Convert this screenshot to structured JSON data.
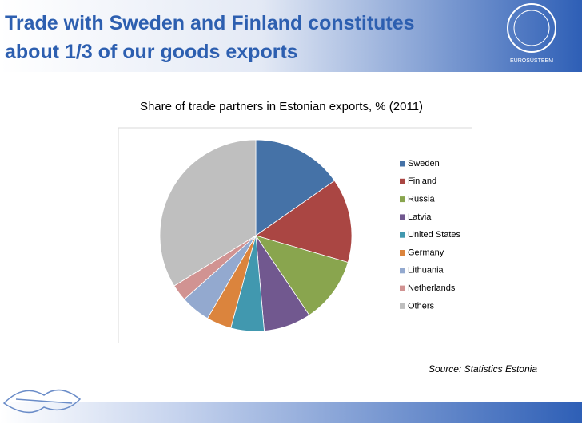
{
  "header": {
    "title": [
      "Trade with Sweden and Finland constitutes",
      "about 1/3 of our goods exports"
    ],
    "logo_text": "EUROSÜSTEEM"
  },
  "chart_data": {
    "type": "pie",
    "title": "Share of trade partners in Estonian exports, % (2011)",
    "categories": [
      "Sweden",
      "Finland",
      "Russia",
      "Latvia",
      "United States",
      "Germany",
      "Lithuania",
      "Netherlands",
      "Others"
    ],
    "values": [
      15.3,
      14.2,
      11.1,
      8.0,
      5.6,
      4.2,
      5.0,
      2.8,
      33.8
    ],
    "colors": [
      "#4572a7",
      "#aa4643",
      "#89a54e",
      "#71588f",
      "#4198af",
      "#db843d",
      "#93a9cf",
      "#d19392",
      "#bfbfbf"
    ],
    "legend": "right"
  },
  "source": "Source: Statistics Estonia"
}
